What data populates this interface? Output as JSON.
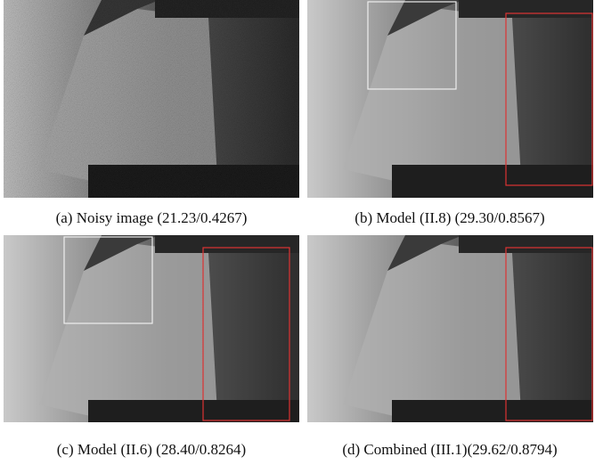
{
  "figures": [
    {
      "caption": "(a) Noisy image (21.23/0.4267)"
    },
    {
      "caption": "(b) Model (II.8) (29.30/0.8567)"
    },
    {
      "caption": "(c) Model (II.6) (28.40/0.8264)"
    },
    {
      "caption": "(d) Combined (III.1)(29.62/0.8794)"
    }
  ]
}
